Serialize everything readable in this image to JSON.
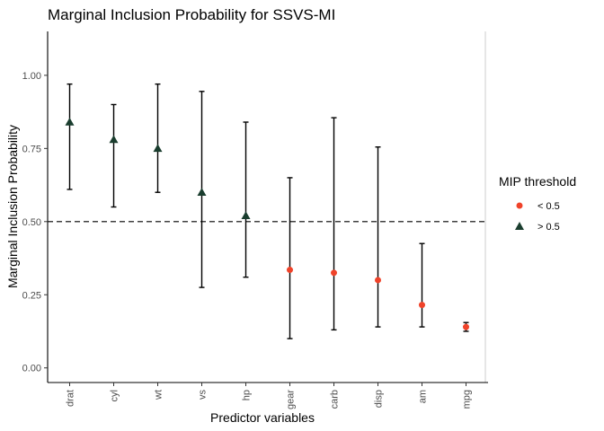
{
  "chart_data": {
    "type": "scatter",
    "title": "Marginal Inclusion Probability for SSVS-MI",
    "xlabel": "Predictor variables",
    "ylabel": "Marginal Inclusion Probability",
    "ylim": [
      -0.05,
      1.15
    ],
    "yticks": [
      0.0,
      0.25,
      0.5,
      0.75,
      1.0
    ],
    "ytick_labels": [
      "0.00",
      "0.25",
      "0.50",
      "0.75",
      "1.00"
    ],
    "categories": [
      "drat",
      "cyl",
      "wt",
      "vs",
      "hp",
      "gear",
      "carb",
      "disp",
      "am",
      "mpg"
    ],
    "points": [
      {
        "x": "drat",
        "y": 0.84,
        "lower": 0.61,
        "upper": 0.97,
        "group": "> 0.5"
      },
      {
        "x": "cyl",
        "y": 0.78,
        "lower": 0.55,
        "upper": 0.9,
        "group": "> 0.5"
      },
      {
        "x": "wt",
        "y": 0.75,
        "lower": 0.6,
        "upper": 0.97,
        "group": "> 0.5"
      },
      {
        "x": "vs",
        "y": 0.6,
        "lower": 0.275,
        "upper": 0.945,
        "group": "> 0.5"
      },
      {
        "x": "hp",
        "y": 0.52,
        "lower": 0.31,
        "upper": 0.84,
        "group": "> 0.5"
      },
      {
        "x": "gear",
        "y": 0.335,
        "lower": 0.1,
        "upper": 0.65,
        "group": "< 0.5"
      },
      {
        "x": "carb",
        "y": 0.325,
        "lower": 0.13,
        "upper": 0.855,
        "group": "< 0.5"
      },
      {
        "x": "disp",
        "y": 0.3,
        "lower": 0.14,
        "upper": 0.755,
        "group": "< 0.5"
      },
      {
        "x": "am",
        "y": 0.215,
        "lower": 0.14,
        "upper": 0.425,
        "group": "< 0.5"
      },
      {
        "x": "mpg",
        "y": 0.14,
        "lower": 0.125,
        "upper": 0.155,
        "group": "< 0.5"
      }
    ],
    "threshold": 0.5,
    "grid": false,
    "legend": {
      "title": "MIP threshold",
      "position": "right",
      "entries": [
        {
          "label": "< 0.5",
          "shape": "circle",
          "color": "#f0432a"
        },
        {
          "label": "> 0.5",
          "shape": "triangle",
          "color": "#1a3d2e"
        }
      ]
    }
  }
}
